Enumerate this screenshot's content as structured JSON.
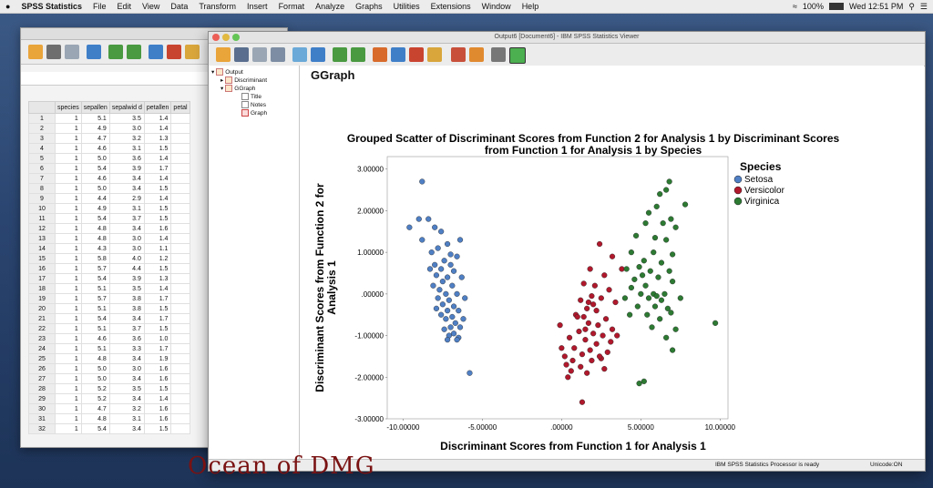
{
  "menubar": {
    "app_name": "SPSS Statistics",
    "items": [
      "File",
      "Edit",
      "View",
      "Data",
      "Transform",
      "Insert",
      "Format",
      "Analyze",
      "Graphs",
      "Utilities",
      "Extensions",
      "Window",
      "Help"
    ],
    "battery": "100%",
    "clock": "Wed 12:51 PM"
  },
  "editor": {
    "columns": [
      "species",
      "sepallen",
      "sepalwid d",
      "petallen",
      "petal"
    ],
    "rows": [
      [
        1,
        "5.1",
        "3.5",
        "1.4"
      ],
      [
        1,
        "4.9",
        "3.0",
        "1.4"
      ],
      [
        1,
        "4.7",
        "3.2",
        "1.3"
      ],
      [
        1,
        "4.6",
        "3.1",
        "1.5"
      ],
      [
        1,
        "5.0",
        "3.6",
        "1.4"
      ],
      [
        1,
        "5.4",
        "3.9",
        "1.7"
      ],
      [
        1,
        "4.6",
        "3.4",
        "1.4"
      ],
      [
        1,
        "5.0",
        "3.4",
        "1.5"
      ],
      [
        1,
        "4.4",
        "2.9",
        "1.4"
      ],
      [
        1,
        "4.9",
        "3.1",
        "1.5"
      ],
      [
        1,
        "5.4",
        "3.7",
        "1.5"
      ],
      [
        1,
        "4.8",
        "3.4",
        "1.6"
      ],
      [
        1,
        "4.8",
        "3.0",
        "1.4"
      ],
      [
        1,
        "4.3",
        "3.0",
        "1.1"
      ],
      [
        1,
        "5.8",
        "4.0",
        "1.2"
      ],
      [
        1,
        "5.7",
        "4.4",
        "1.5"
      ],
      [
        1,
        "5.4",
        "3.9",
        "1.3"
      ],
      [
        1,
        "5.1",
        "3.5",
        "1.4"
      ],
      [
        1,
        "5.7",
        "3.8",
        "1.7"
      ],
      [
        1,
        "5.1",
        "3.8",
        "1.5"
      ],
      [
        1,
        "5.4",
        "3.4",
        "1.7"
      ],
      [
        1,
        "5.1",
        "3.7",
        "1.5"
      ],
      [
        1,
        "4.6",
        "3.6",
        "1.0"
      ],
      [
        1,
        "5.1",
        "3.3",
        "1.7"
      ],
      [
        1,
        "4.8",
        "3.4",
        "1.9"
      ],
      [
        1,
        "5.0",
        "3.0",
        "1.6"
      ],
      [
        1,
        "5.0",
        "3.4",
        "1.6"
      ],
      [
        1,
        "5.2",
        "3.5",
        "1.5"
      ],
      [
        1,
        "5.2",
        "3.4",
        "1.4"
      ],
      [
        1,
        "4.7",
        "3.2",
        "1.6"
      ],
      [
        1,
        "4.8",
        "3.1",
        "1.6"
      ],
      [
        1,
        "5.4",
        "3.4",
        "1.5"
      ]
    ]
  },
  "viewer": {
    "window_title": "Output6 [Document6] - IBM SPSS Statistics Viewer",
    "outline": [
      "Output",
      "Discriminant",
      "GGraph",
      "Title",
      "Notes",
      "Graph"
    ],
    "heading": "GGraph",
    "status_processor": "IBM SPSS Statistics Processor is ready",
    "status_encoding": "Unicode:ON"
  },
  "watermark": "Ocean of DMG",
  "chart_data": {
    "type": "scatter",
    "title": "Grouped Scatter of Discriminant Scores from Function 2 for Analysis 1 by Discriminant Scores from Function 1 for Analysis 1 by Species",
    "xlabel": "Discriminant Scores from Function 1 for Analysis 1",
    "ylabel": "Discriminant Scores from Function 2 for Analysis 1",
    "xlim": [
      -11,
      10.5
    ],
    "ylim": [
      -3,
      3.3
    ],
    "xticks": [
      "-10.00000",
      "-5.00000",
      ".00000",
      "5.00000",
      "10.00000"
    ],
    "xtick_values": [
      -10,
      -5,
      0,
      5,
      10
    ],
    "yticks": [
      "3.00000",
      "2.00000",
      "1.00000",
      ".00000",
      "-1.00000",
      "-2.00000",
      "-3.00000"
    ],
    "ytick_values": [
      3,
      2,
      1,
      0,
      -1,
      -2,
      -3
    ],
    "legend_title": "Species",
    "legend_position": "top-right",
    "series": [
      {
        "name": "Setosa",
        "color": "#4f7fc4",
        "points": [
          [
            -8.8,
            2.7
          ],
          [
            -9.0,
            1.8
          ],
          [
            -8.4,
            1.8
          ],
          [
            -9.6,
            1.6
          ],
          [
            -8.0,
            1.6
          ],
          [
            -7.6,
            1.5
          ],
          [
            -8.8,
            1.3
          ],
          [
            -7.2,
            1.2
          ],
          [
            -6.4,
            1.3
          ],
          [
            -7.8,
            1.1
          ],
          [
            -8.2,
            1.0
          ],
          [
            -7.0,
            0.95
          ],
          [
            -6.6,
            0.9
          ],
          [
            -7.4,
            0.8
          ],
          [
            -8.0,
            0.7
          ],
          [
            -7.6,
            0.6
          ],
          [
            -6.8,
            0.55
          ],
          [
            -7.9,
            0.45
          ],
          [
            -7.2,
            0.4
          ],
          [
            -6.3,
            0.4
          ],
          [
            -7.5,
            0.3
          ],
          [
            -8.1,
            0.2
          ],
          [
            -6.9,
            0.2
          ],
          [
            -7.7,
            0.1
          ],
          [
            -7.3,
            0.0
          ],
          [
            -6.6,
            0.0
          ],
          [
            -7.8,
            -0.1
          ],
          [
            -7.1,
            -0.15
          ],
          [
            -7.5,
            -0.25
          ],
          [
            -6.8,
            -0.3
          ],
          [
            -7.2,
            -0.4
          ],
          [
            -6.5,
            -0.4
          ],
          [
            -7.6,
            -0.5
          ],
          [
            -6.9,
            -0.55
          ],
          [
            -7.3,
            -0.6
          ],
          [
            -6.7,
            -0.7
          ],
          [
            -7.0,
            -0.8
          ],
          [
            -6.4,
            -0.8
          ],
          [
            -7.4,
            -0.85
          ],
          [
            -6.8,
            -0.95
          ],
          [
            -7.1,
            -1.0
          ],
          [
            -6.5,
            -1.05
          ],
          [
            -7.2,
            -1.1
          ],
          [
            -6.6,
            -1.1
          ],
          [
            -5.8,
            -1.9
          ],
          [
            -8.3,
            0.6
          ],
          [
            -7.0,
            0.7
          ],
          [
            -6.1,
            -0.1
          ],
          [
            -7.9,
            -0.35
          ],
          [
            -6.2,
            -0.6
          ]
        ]
      },
      {
        "name": "Versicolor",
        "color": "#b0182c",
        "points": [
          [
            2.4,
            1.2
          ],
          [
            3.2,
            0.9
          ],
          [
            1.8,
            0.6
          ],
          [
            2.7,
            0.45
          ],
          [
            1.4,
            0.25
          ],
          [
            2.1,
            0.2
          ],
          [
            3.0,
            0.1
          ],
          [
            3.8,
            0.6
          ],
          [
            1.9,
            -0.05
          ],
          [
            2.5,
            -0.1
          ],
          [
            1.2,
            -0.15
          ],
          [
            3.4,
            -0.2
          ],
          [
            1.6,
            -0.35
          ],
          [
            2.2,
            -0.4
          ],
          [
            0.9,
            -0.5
          ],
          [
            1.4,
            -0.55
          ],
          [
            2.8,
            -0.6
          ],
          [
            1.7,
            -0.7
          ],
          [
            2.3,
            -0.75
          ],
          [
            -0.1,
            -0.75
          ],
          [
            3.2,
            -0.85
          ],
          [
            1.1,
            -0.9
          ],
          [
            2.0,
            -0.95
          ],
          [
            2.6,
            -1.0
          ],
          [
            0.5,
            -1.05
          ],
          [
            1.5,
            -1.1
          ],
          [
            3.1,
            -1.15
          ],
          [
            2.2,
            -1.2
          ],
          [
            0.8,
            -1.3
          ],
          [
            1.8,
            -1.35
          ],
          [
            2.9,
            -1.4
          ],
          [
            0.0,
            -1.3
          ],
          [
            1.3,
            -1.45
          ],
          [
            2.5,
            -1.55
          ],
          [
            0.7,
            -1.6
          ],
          [
            1.9,
            -1.6
          ],
          [
            0.3,
            -1.7
          ],
          [
            1.2,
            -1.75
          ],
          [
            2.7,
            -1.8
          ],
          [
            0.6,
            -1.85
          ],
          [
            1.6,
            -1.9
          ],
          [
            0.4,
            -2.0
          ],
          [
            1.3,
            -2.6
          ],
          [
            1.0,
            -0.55
          ],
          [
            2.0,
            -0.25
          ],
          [
            1.5,
            -0.85
          ],
          [
            2.4,
            -1.5
          ],
          [
            3.5,
            -1.0
          ],
          [
            0.2,
            -1.5
          ],
          [
            1.7,
            -0.2
          ]
        ]
      },
      {
        "name": "Virginica",
        "color": "#2d7a33",
        "points": [
          [
            6.8,
            2.7
          ],
          [
            6.6,
            2.5
          ],
          [
            6.2,
            2.4
          ],
          [
            7.8,
            2.15
          ],
          [
            6.0,
            2.1
          ],
          [
            5.5,
            1.95
          ],
          [
            6.9,
            1.8
          ],
          [
            5.3,
            1.7
          ],
          [
            6.4,
            1.7
          ],
          [
            7.2,
            1.6
          ],
          [
            4.7,
            1.4
          ],
          [
            5.9,
            1.35
          ],
          [
            6.6,
            1.3
          ],
          [
            4.4,
            1.0
          ],
          [
            5.8,
            1.0
          ],
          [
            7.0,
            0.95
          ],
          [
            5.2,
            0.8
          ],
          [
            6.3,
            0.75
          ],
          [
            4.9,
            0.65
          ],
          [
            6.8,
            0.55
          ],
          [
            4.1,
            0.6
          ],
          [
            5.6,
            0.55
          ],
          [
            6.1,
            0.4
          ],
          [
            4.6,
            0.35
          ],
          [
            7.0,
            0.3
          ],
          [
            5.3,
            0.2
          ],
          [
            4.4,
            0.15
          ],
          [
            5.8,
            0.0
          ],
          [
            6.5,
            0.0
          ],
          [
            5.0,
            0.0
          ],
          [
            4.0,
            -0.1
          ],
          [
            5.5,
            -0.1
          ],
          [
            6.3,
            -0.15
          ],
          [
            7.5,
            -0.1
          ],
          [
            4.8,
            -0.3
          ],
          [
            5.9,
            -0.3
          ],
          [
            6.7,
            -0.35
          ],
          [
            4.3,
            -0.5
          ],
          [
            5.4,
            -0.5
          ],
          [
            6.2,
            -0.6
          ],
          [
            9.7,
            -0.7
          ],
          [
            5.7,
            -0.8
          ],
          [
            7.2,
            -0.85
          ],
          [
            6.6,
            -1.05
          ],
          [
            7.0,
            -1.35
          ],
          [
            5.2,
            -2.1
          ],
          [
            4.9,
            -2.15
          ],
          [
            6.9,
            -0.45
          ],
          [
            5.1,
            0.45
          ],
          [
            6.0,
            -0.05
          ]
        ]
      }
    ]
  }
}
